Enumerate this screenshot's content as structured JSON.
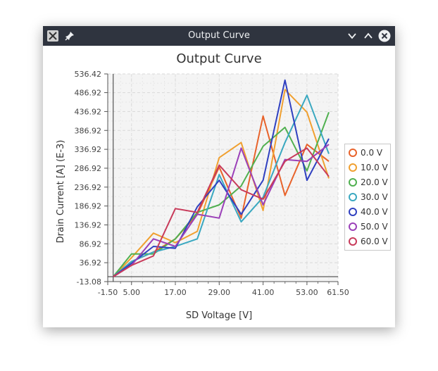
{
  "window": {
    "title": "Output Curve"
  },
  "icons": {
    "app": "app-x-icon",
    "pin": "pin-icon",
    "minimize": "chevron-down-icon",
    "maximize": "chevron-up-icon",
    "close": "close-icon"
  },
  "chart_data": {
    "type": "line",
    "title": "Output Curve",
    "xlabel": "SD Voltage [V]",
    "ylabel": "Drain Current [A] (E-3)",
    "xlim": [
      -1.5,
      61.5
    ],
    "ylim": [
      -13.08,
      536.42
    ],
    "xticks": [
      "-1.50",
      "5.00",
      "17.00",
      "29.00",
      "41.00",
      "53.00",
      "61.50"
    ],
    "yticks": [
      "536.42",
      "486.92",
      "436.92",
      "386.92",
      "336.92",
      "286.92",
      "236.92",
      "186.92",
      "136.92",
      "86.92",
      "36.92",
      "-13.08"
    ],
    "grid": true,
    "legend_position": "right",
    "x": [
      0,
      5,
      11,
      17,
      23,
      29,
      35,
      41,
      47,
      53,
      59
    ],
    "series": [
      {
        "name": "0.0 V",
        "color": "#e8632b",
        "values": [
          0,
          40,
          65,
          100,
          165,
          290,
          155,
          425,
          215,
          350,
          305
        ]
      },
      {
        "name": "10.0 V",
        "color": "#f0a030",
        "values": [
          0,
          50,
          115,
          90,
          120,
          315,
          355,
          175,
          495,
          435,
          260
        ]
      },
      {
        "name": "20.0 V",
        "color": "#50b050",
        "values": [
          0,
          60,
          60,
          100,
          170,
          190,
          240,
          345,
          395,
          280,
          435
        ]
      },
      {
        "name": "30.0 V",
        "color": "#3aa8c0",
        "values": [
          0,
          40,
          65,
          80,
          100,
          270,
          145,
          210,
          355,
          480,
          325
        ]
      },
      {
        "name": "40.0 V",
        "color": "#3040c0",
        "values": [
          0,
          35,
          80,
          75,
          185,
          255,
          165,
          255,
          520,
          255,
          365
        ]
      },
      {
        "name": "50.0 V",
        "color": "#9b40b8",
        "values": [
          0,
          30,
          100,
          80,
          165,
          155,
          340,
          190,
          310,
          305,
          350
        ]
      },
      {
        "name": "60.0 V",
        "color": "#c83a5a",
        "values": [
          0,
          30,
          55,
          180,
          170,
          295,
          230,
          205,
          305,
          340,
          265
        ]
      }
    ]
  }
}
